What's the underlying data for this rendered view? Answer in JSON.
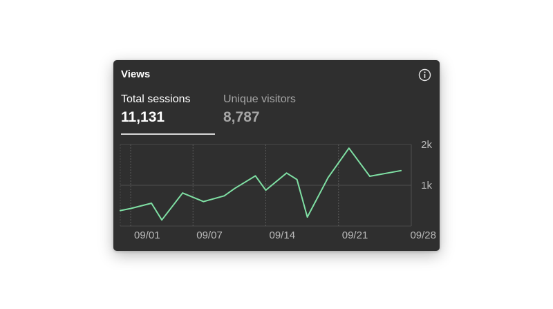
{
  "widget": {
    "title": "Views",
    "info_icon": "info-icon"
  },
  "tabs": [
    {
      "label": "Total sessions",
      "value": "11,131",
      "active": true
    },
    {
      "label": "Unique visitors",
      "value": "8,787",
      "active": false
    }
  ],
  "colors": {
    "background": "#2f2f2f",
    "line": "#7fe0a4",
    "active_text": "#ffffff",
    "inactive_text": "#a6a6a6"
  },
  "chart_data": {
    "type": "line",
    "title": "",
    "xlabel": "",
    "ylabel": "",
    "y_axis_position": "right",
    "grid": true,
    "ylim": [
      0,
      2000
    ],
    "y_ticks": [
      {
        "value": 1000,
        "label": "1k"
      },
      {
        "value": 2000,
        "label": "2k"
      }
    ],
    "x_range": [
      "08/31",
      "09/28"
    ],
    "x_ticks": [
      {
        "date": "09/01",
        "label": "09/01"
      },
      {
        "date": "09/07",
        "label": "09/07"
      },
      {
        "date": "09/14",
        "label": "09/14"
      },
      {
        "date": "09/21",
        "label": "09/21"
      },
      {
        "date": "09/28",
        "label": "09/28"
      }
    ],
    "series": [
      {
        "color": "#7fe0a4",
        "points": [
          {
            "x": "08/31",
            "y": 380
          },
          {
            "x": "09/01",
            "y": 430
          },
          {
            "x": "09/03",
            "y": 560
          },
          {
            "x": "09/04",
            "y": 150
          },
          {
            "x": "09/06",
            "y": 810
          },
          {
            "x": "09/08",
            "y": 600
          },
          {
            "x": "09/10",
            "y": 740
          },
          {
            "x": "09/11",
            "y": 920
          },
          {
            "x": "09/13",
            "y": 1230
          },
          {
            "x": "09/14",
            "y": 880
          },
          {
            "x": "09/16",
            "y": 1300
          },
          {
            "x": "09/17",
            "y": 1140
          },
          {
            "x": "09/18",
            "y": 220
          },
          {
            "x": "09/20",
            "y": 1190
          },
          {
            "x": "09/22",
            "y": 1910
          },
          {
            "x": "09/24",
            "y": 1220
          },
          {
            "x": "09/27",
            "y": 1360
          }
        ]
      }
    ]
  }
}
